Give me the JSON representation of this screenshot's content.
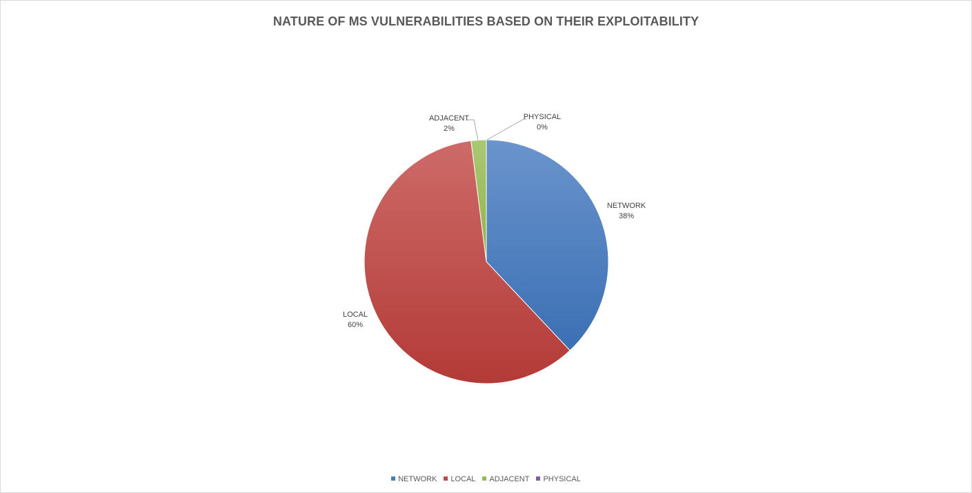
{
  "chart_data": {
    "type": "pie",
    "title": "NATURE OF MS VULNERABILITIES BASED ON THEIR EXPLOITABILITY",
    "categories": [
      "NETWORK",
      "LOCAL",
      "ADJACENT",
      "PHYSICAL"
    ],
    "values": [
      38,
      60,
      2,
      0
    ],
    "labels": [
      {
        "name": "NETWORK",
        "percent": "38%"
      },
      {
        "name": "LOCAL",
        "percent": "60%"
      },
      {
        "name": "ADJACENT",
        "percent": "2%"
      },
      {
        "name": "PHYSICAL",
        "percent": "0%"
      }
    ],
    "colors": [
      "#4a7ebb",
      "#be4b48",
      "#98b954",
      "#7d60a0"
    ],
    "legend_position": "bottom"
  }
}
